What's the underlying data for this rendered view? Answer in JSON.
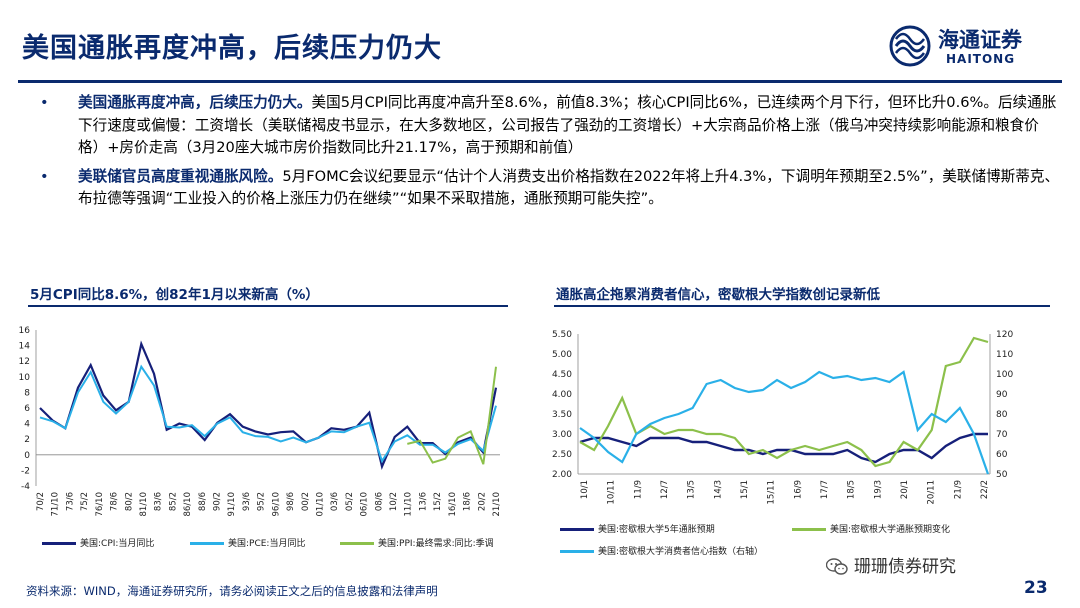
{
  "title": "美国通胀再度冲高，后续压力仍大",
  "logo": {
    "cn": "海通证券",
    "en": "HAITONG"
  },
  "bullets": [
    {
      "head": "美国通胀再度冲高，后续压力仍大。",
      "body": "美国5月CPI同比再度冲高升至8.6%，前值8.3%；核心CPI同比6%，已连续两个月下行，但环比升0.6%。后续通胀下行速度或偏慢：工资增长（美联储褐皮书显示，在大多数地区，公司报告了强劲的工资增长）+大宗商品价格上涨（俄乌冲突持续影响能源和粮食价格）+房价走高（3月20座大城市房价指数同比升21.17%，高于预期和前值）"
    },
    {
      "head": "美联储官员高度重视通胀风险。",
      "body": "5月FOMC会议纪要显示“估计个人消费支出价格指数在2022年将上升4.3%，下调明年预期至2.5%”，美联储博斯蒂克、布拉德等强调“工业投入的价格上涨压力仍在继续”“如果不采取措施，通胀预期可能失控”。"
    }
  ],
  "chart_left_title": "5月CPI同比8.6%，创82年1月以来新高（%）",
  "chart_right_title": "通胀高企拖累消费者信心，密歇根大学指数创记录新低",
  "footer": "资料来源：WIND，海通证券研究所，请务必阅读正文之后的信息披露和法律声明",
  "page_number": "23",
  "wechat_account": "珊珊债券研究",
  "chart_data": [
    {
      "type": "line",
      "y_ticks": [
        "16",
        "14",
        "12",
        "10",
        "8",
        "6",
        "4",
        "2",
        "0",
        "-2",
        "-4"
      ],
      "ylim": [
        -4,
        16
      ],
      "x_ticks": [
        "70/2",
        "71/10",
        "73/6",
        "75/2",
        "76/10",
        "78/6",
        "80/2",
        "81/10",
        "83/6",
        "85/2",
        "86/10",
        "88/6",
        "90/2",
        "91/10",
        "93/6",
        "95/2",
        "96/10",
        "98/6",
        "00/2",
        "01/10",
        "03/6",
        "05/2",
        "06/10",
        "08/6",
        "10/2",
        "11/10",
        "13/6",
        "15/2",
        "16/10",
        "18/6",
        "20/2",
        "21/10"
      ],
      "series": [
        {
          "name": "美国:CPI:当月同比",
          "color": "#16207a",
          "values": [
            6.0,
            4.4,
            3.4,
            8.6,
            11.5,
            7.6,
            5.7,
            6.8,
            14.2,
            10.4,
            3.2,
            4.0,
            3.6,
            1.9,
            4.1,
            5.2,
            3.6,
            3.0,
            2.6,
            2.9,
            3.0,
            1.6,
            2.2,
            3.4,
            3.2,
            3.6,
            5.4,
            -1.5,
            2.3,
            3.6,
            1.5,
            1.5,
            0.1,
            1.6,
            2.2,
            0.3,
            8.6
          ]
        },
        {
          "name": "美国:PCE:当月同比",
          "color": "#2ab0e8",
          "values": [
            4.8,
            4.3,
            3.4,
            8.0,
            10.6,
            6.8,
            5.3,
            6.8,
            11.3,
            8.9,
            3.6,
            3.5,
            3.8,
            2.4,
            4.0,
            4.8,
            2.9,
            2.4,
            2.3,
            1.7,
            2.2,
            1.6,
            2.2,
            3.0,
            2.9,
            3.6,
            4.1,
            -0.8,
            1.7,
            2.5,
            1.3,
            1.3,
            0.3,
            1.4,
            2.0,
            0.5,
            6.3
          ]
        },
        {
          "name": "美国:PPI:最终需求:同比:季调",
          "color": "#8cc04b",
          "values": [
            null,
            null,
            null,
            null,
            null,
            null,
            null,
            null,
            null,
            null,
            null,
            null,
            null,
            null,
            null,
            null,
            null,
            null,
            null,
            null,
            null,
            null,
            null,
            null,
            null,
            null,
            null,
            null,
            null,
            1.4,
            1.8,
            -1.0,
            -0.5,
            2.2,
            3.0,
            -1.2,
            11.3
          ]
        }
      ]
    },
    {
      "type": "line",
      "y_ticks_left": [
        "5.50",
        "5.00",
        "4.50",
        "4.00",
        "3.50",
        "3.00",
        "2.50",
        "2.00"
      ],
      "ylim_left": [
        2.0,
        5.5
      ],
      "y_ticks_right": [
        "120",
        "110",
        "100",
        "90",
        "80",
        "70",
        "60",
        "50"
      ],
      "ylim_right": [
        50,
        120
      ],
      "x_ticks": [
        "10/1",
        "10/11",
        "11/9",
        "12/7",
        "13/5",
        "14/3",
        "15/1",
        "15/11",
        "16/9",
        "17/7",
        "18/5",
        "19/3",
        "20/1",
        "20/11",
        "21/9",
        "22/2"
      ],
      "series": [
        {
          "name": "美国:密歇根大学5年通胀预期",
          "color": "#16207a",
          "axis": "left",
          "values": [
            2.8,
            2.9,
            2.9,
            2.8,
            2.7,
            2.9,
            2.9,
            2.9,
            2.8,
            2.8,
            2.7,
            2.6,
            2.6,
            2.5,
            2.6,
            2.6,
            2.5,
            2.5,
            2.5,
            2.6,
            2.4,
            2.3,
            2.5,
            2.6,
            2.6,
            2.4,
            2.7,
            2.9,
            3.0,
            3.0
          ]
        },
        {
          "name": "美国:密歇根大学通胀预期变化",
          "color": "#8cc04b",
          "axis": "left",
          "values": [
            2.8,
            2.6,
            3.2,
            3.9,
            3.0,
            3.2,
            3.0,
            3.1,
            3.1,
            3.0,
            3.0,
            2.9,
            2.5,
            2.6,
            2.4,
            2.6,
            2.7,
            2.6,
            2.7,
            2.8,
            2.6,
            2.2,
            2.3,
            2.8,
            2.6,
            3.1,
            4.7,
            4.8,
            5.4,
            5.3
          ]
        },
        {
          "name": "美国:密歇根大学消费者信心指数（右轴）",
          "color": "#2ab0e8",
          "axis": "right",
          "values": [
            73,
            68,
            61,
            56,
            70,
            75,
            78,
            80,
            83,
            95,
            97,
            93,
            91,
            92,
            97,
            93,
            96,
            101,
            98,
            99,
            97,
            98,
            96,
            101,
            72,
            80,
            76,
            83,
            70,
            50
          ]
        }
      ]
    }
  ]
}
